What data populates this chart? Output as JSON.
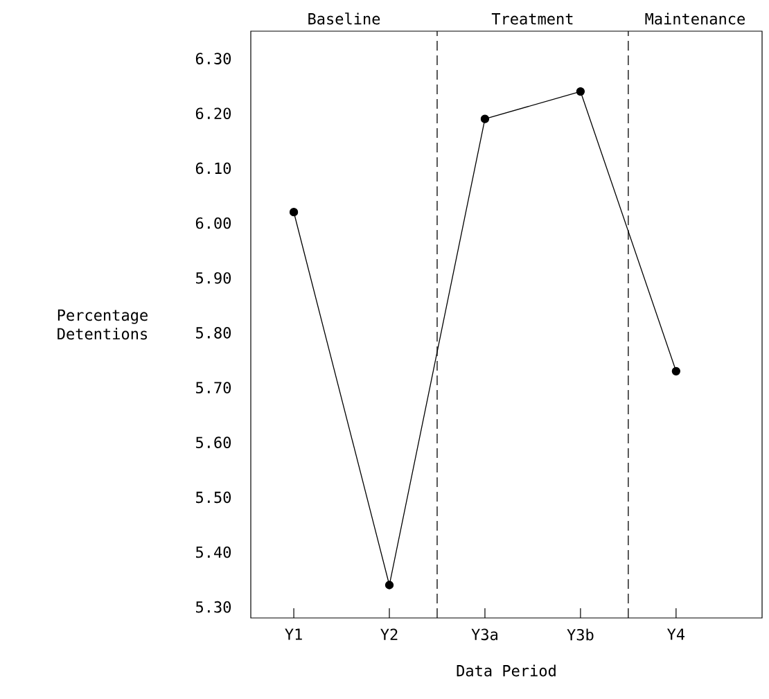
{
  "chart_data": {
    "type": "line",
    "xlabel": "Data Period",
    "ylabel": "Percentage Detentions",
    "categories": [
      "Y1",
      "Y2",
      "Y3a",
      "Y3b",
      "Y4"
    ],
    "series": [
      {
        "color": "#000000",
        "values": [
          6.02,
          5.34,
          6.19,
          6.24,
          5.73
        ]
      }
    ],
    "ylim": [
      5.28,
      6.35
    ],
    "yticks": [
      {
        "value": 5.3,
        "label": "5.30"
      },
      {
        "value": 5.4,
        "label": "5.40"
      },
      {
        "value": 5.5,
        "label": "5.50"
      },
      {
        "value": 5.6,
        "label": "5.60"
      },
      {
        "value": 5.7,
        "label": "5.70"
      },
      {
        "value": 5.8,
        "label": "5.80"
      },
      {
        "value": 5.9,
        "label": "5.90"
      },
      {
        "value": 6.0,
        "label": "6.00"
      },
      {
        "value": 6.1,
        "label": "6.10"
      },
      {
        "value": 6.2,
        "label": "6.20"
      },
      {
        "value": 6.3,
        "label": "6.30"
      }
    ],
    "grid": false,
    "marker": "circle",
    "line_style": "solid",
    "annotations": [
      "Baseline",
      "Treatment",
      "Maintenance"
    ]
  }
}
